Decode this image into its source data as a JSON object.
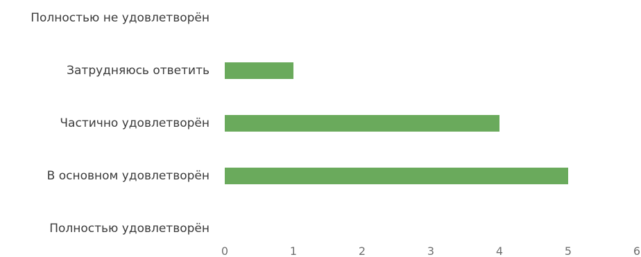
{
  "chart_data": {
    "type": "bar",
    "orientation": "horizontal",
    "categories": [
      "Полностью не удовлетворён",
      "Затрудняюсь ответить",
      "Частично удовлетворён",
      "В основном удовлетворён",
      "Полностью удовлетворён"
    ],
    "values": [
      0,
      1,
      4,
      5,
      0
    ],
    "xlim": [
      0,
      6
    ],
    "x_ticks": [
      "0",
      "1",
      "2",
      "3",
      "4",
      "5",
      "6"
    ],
    "grid": false,
    "legend": "none",
    "bar_color": "#6aaa5c"
  }
}
